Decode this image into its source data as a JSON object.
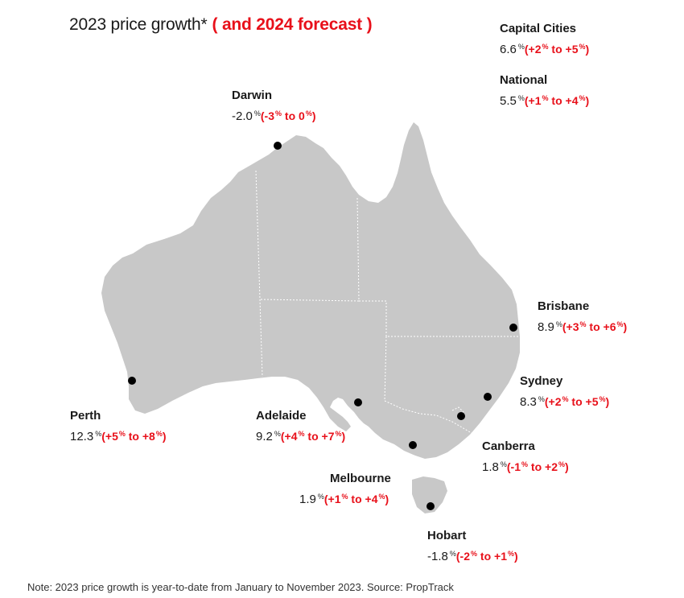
{
  "title": {
    "main": "2023 price growth*",
    "forecast": "( and 2024 forecast )"
  },
  "summary": [
    {
      "id": "capital-cities",
      "name": "Capital Cities",
      "value": "6.6",
      "low": "+2",
      "high": "+5"
    },
    {
      "id": "national",
      "name": "National",
      "value": "5.5",
      "low": "+1",
      "high": "+4"
    }
  ],
  "cities": [
    {
      "id": "darwin",
      "name": "Darwin",
      "value": "-2.0",
      "low": "-3",
      "high": "0"
    },
    {
      "id": "brisbane",
      "name": "Brisbane",
      "value": "8.9",
      "low": "+3",
      "high": "+6"
    },
    {
      "id": "sydney",
      "name": "Sydney",
      "value": "8.3",
      "low": "+2",
      "high": "+5"
    },
    {
      "id": "canberra",
      "name": "Canberra",
      "value": "1.8",
      "low": "-1",
      "high": "+2"
    },
    {
      "id": "melbourne",
      "name": "Melbourne",
      "value": "1.9",
      "low": "+1",
      "high": "+4"
    },
    {
      "id": "hobart",
      "name": "Hobart",
      "value": "-1.8",
      "low": "-2",
      "high": "+1"
    },
    {
      "id": "adelaide",
      "name": "Adelaide",
      "value": "9.2",
      "low": "+4",
      "high": "+7"
    },
    {
      "id": "perth",
      "name": "Perth",
      "value": "12.3",
      "low": "+5",
      "high": "+8"
    }
  ],
  "units": {
    "percent": "%",
    "range_word": "to",
    "open": "(",
    "close": ")"
  },
  "note": "Note: 2023 price growth is year-to-date from January to November 2023. Source: PropTrack",
  "colors": {
    "land": "#c8c8c8",
    "border": "#ffffff",
    "forecast": "#e8101a",
    "marker": "#000000"
  }
}
